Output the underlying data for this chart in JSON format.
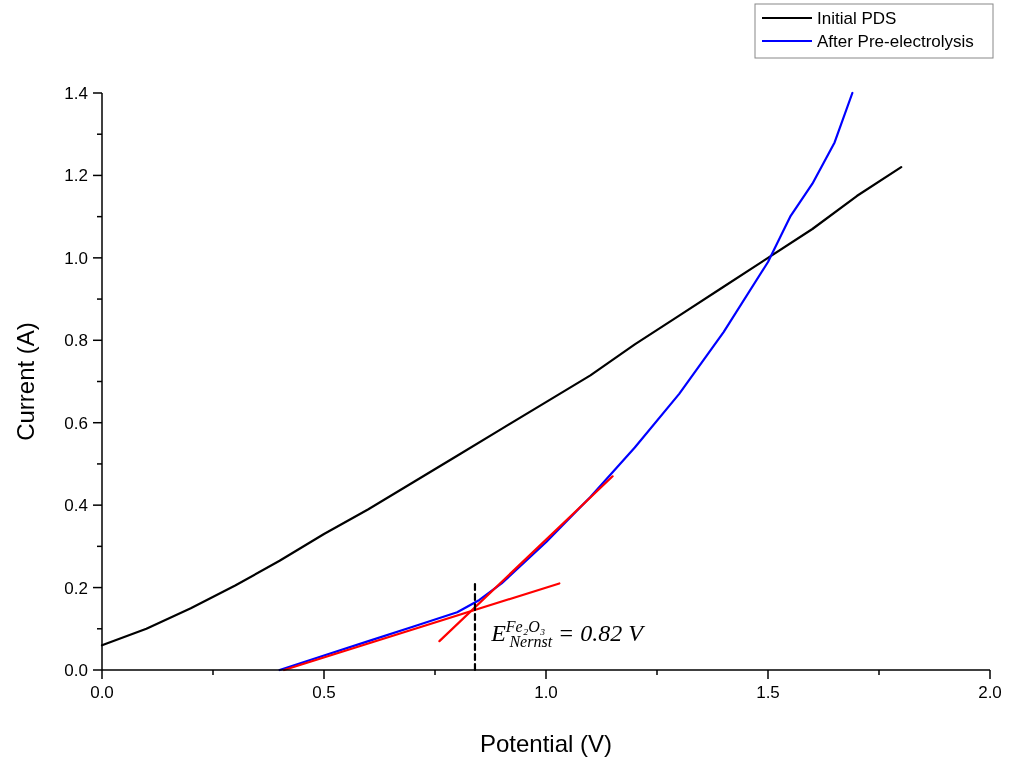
{
  "chart_data": {
    "type": "line",
    "xlabel": "Potential (V)",
    "ylabel": "Current (A)",
    "xlim": [
      0,
      2.0
    ],
    "ylim": [
      0,
      1.4
    ],
    "xticks": [
      {
        "value": 0,
        "label": "0.0"
      },
      {
        "value": 0.25,
        "label": null
      },
      {
        "value": 0.5,
        "label": "0.5"
      },
      {
        "value": 0.75,
        "label": null
      },
      {
        "value": 1.0,
        "label": "1.0"
      },
      {
        "value": 1.25,
        "label": null
      },
      {
        "value": 1.5,
        "label": "1.5"
      },
      {
        "value": 1.75,
        "label": null
      },
      {
        "value": 2.0,
        "label": "2.0"
      }
    ],
    "yticks": [
      {
        "value": 0,
        "label": "0.0"
      },
      {
        "value": 0.1,
        "label": null
      },
      {
        "value": 0.2,
        "label": "0.2"
      },
      {
        "value": 0.3,
        "label": null
      },
      {
        "value": 0.4,
        "label": "0.4"
      },
      {
        "value": 0.5,
        "label": null
      },
      {
        "value": 0.6,
        "label": "0.6"
      },
      {
        "value": 0.7,
        "label": null
      },
      {
        "value": 0.8,
        "label": "0.8"
      },
      {
        "value": 0.9,
        "label": null
      },
      {
        "value": 1.0,
        "label": "1.0"
      },
      {
        "value": 1.1,
        "label": null
      },
      {
        "value": 1.2,
        "label": "1.2"
      },
      {
        "value": 1.3,
        "label": null
      },
      {
        "value": 1.4,
        "label": "1.4"
      }
    ],
    "grid": false,
    "legend": "top right",
    "marker": "none",
    "series": [
      {
        "name": "Initial PDS",
        "color": "#000000",
        "x": [
          0,
          0.1,
          0.2,
          0.3,
          0.4,
          0.5,
          0.6,
          0.7,
          0.8,
          0.9,
          1.0,
          1.1,
          1.2,
          1.3,
          1.4,
          1.5,
          1.6,
          1.7,
          1.8
        ],
        "values": [
          0.06,
          0.1,
          0.15,
          0.205,
          0.265,
          0.33,
          0.39,
          0.455,
          0.52,
          0.585,
          0.65,
          0.715,
          0.79,
          0.86,
          0.93,
          1.0,
          1.07,
          1.15,
          1.22
        ]
      },
      {
        "name": "After Pre-electrolysis",
        "color": "#0000ff",
        "x": [
          0.4,
          0.5,
          0.6,
          0.7,
          0.8,
          0.85,
          0.9,
          1.0,
          1.1,
          1.2,
          1.3,
          1.4,
          1.5,
          1.55,
          1.6,
          1.65,
          1.69
        ],
        "values": [
          0.0,
          0.035,
          0.07,
          0.105,
          0.14,
          0.17,
          0.21,
          0.31,
          0.42,
          0.54,
          0.67,
          0.82,
          0.99,
          1.1,
          1.18,
          1.28,
          1.4
        ]
      },
      {
        "color": "#ff0000",
        "x": [
          0.41,
          1.03
        ],
        "values": [
          0.0,
          0.21
        ]
      },
      {
        "color": "#ff0000",
        "x": [
          0.76,
          1.15
        ],
        "values": [
          0.07,
          0.47
        ]
      },
      {
        "color": "#000000",
        "line_style": "dashed",
        "x": [
          0.84,
          0.84
        ],
        "values": [
          0,
          0.21
        ]
      }
    ],
    "annotations": [
      "E$^{Fe₂O₃}$$_{Nernst}$ = 0.82 V"
    ]
  }
}
